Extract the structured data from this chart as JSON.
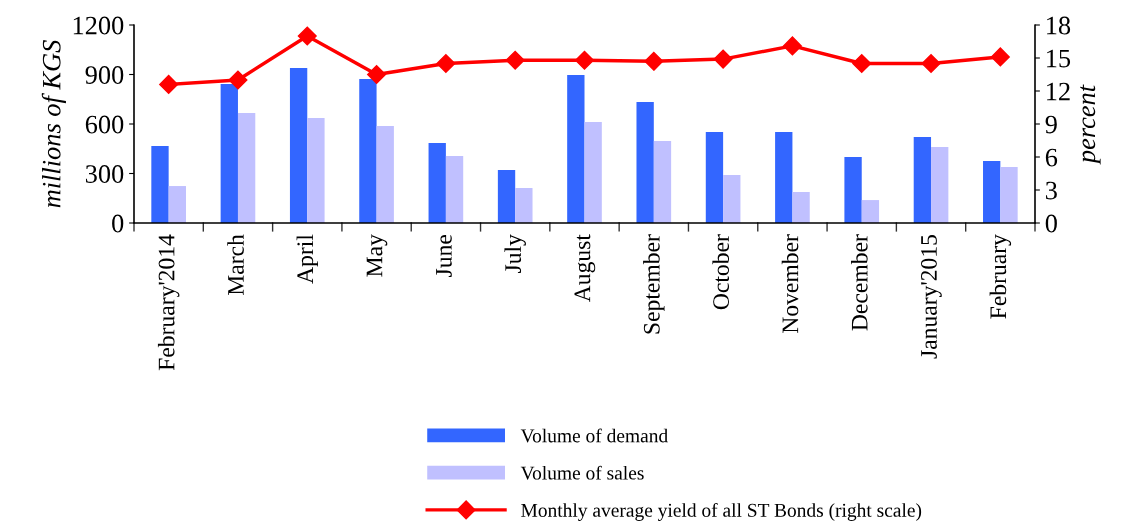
{
  "chart_data": {
    "type": "bar",
    "ylabel": "millions of KGS",
    "y2label": "percent",
    "categories": [
      "February'2014",
      "March",
      "April",
      "May",
      "June",
      "July",
      "August",
      "September",
      "October",
      "November",
      "December",
      "January'2015",
      "February"
    ],
    "series": [
      {
        "name": "Volume of demand",
        "color": "#3366ff",
        "values": [
          467,
          842,
          939,
          873,
          485,
          321,
          897,
          733,
          551,
          551,
          400,
          521,
          376
        ]
      },
      {
        "name": "Volume of sales",
        "color": "#c0c0ff",
        "values": [
          224,
          667,
          636,
          588,
          406,
          212,
          612,
          497,
          291,
          188,
          139,
          461,
          339
        ]
      },
      {
        "name": "Monthly average yield of all ST Bonds (right scale)",
        "type": "line",
        "axis": "y2",
        "color": "#ff0000",
        "marker": "diamond",
        "line_style": "solid",
        "values": [
          12.6,
          13.0,
          17.0,
          13.5,
          14.5,
          14.8,
          14.8,
          14.7,
          14.9,
          16.1,
          14.5,
          14.5,
          15.1
        ]
      }
    ],
    "ylim": [
      0,
      1200
    ],
    "yticks": [
      0,
      300,
      600,
      900,
      1200
    ],
    "y2lim": [
      0,
      18
    ],
    "y2ticks": [
      0,
      3,
      6,
      9,
      12,
      15,
      18
    ],
    "grid": false,
    "legend": "bottom"
  }
}
